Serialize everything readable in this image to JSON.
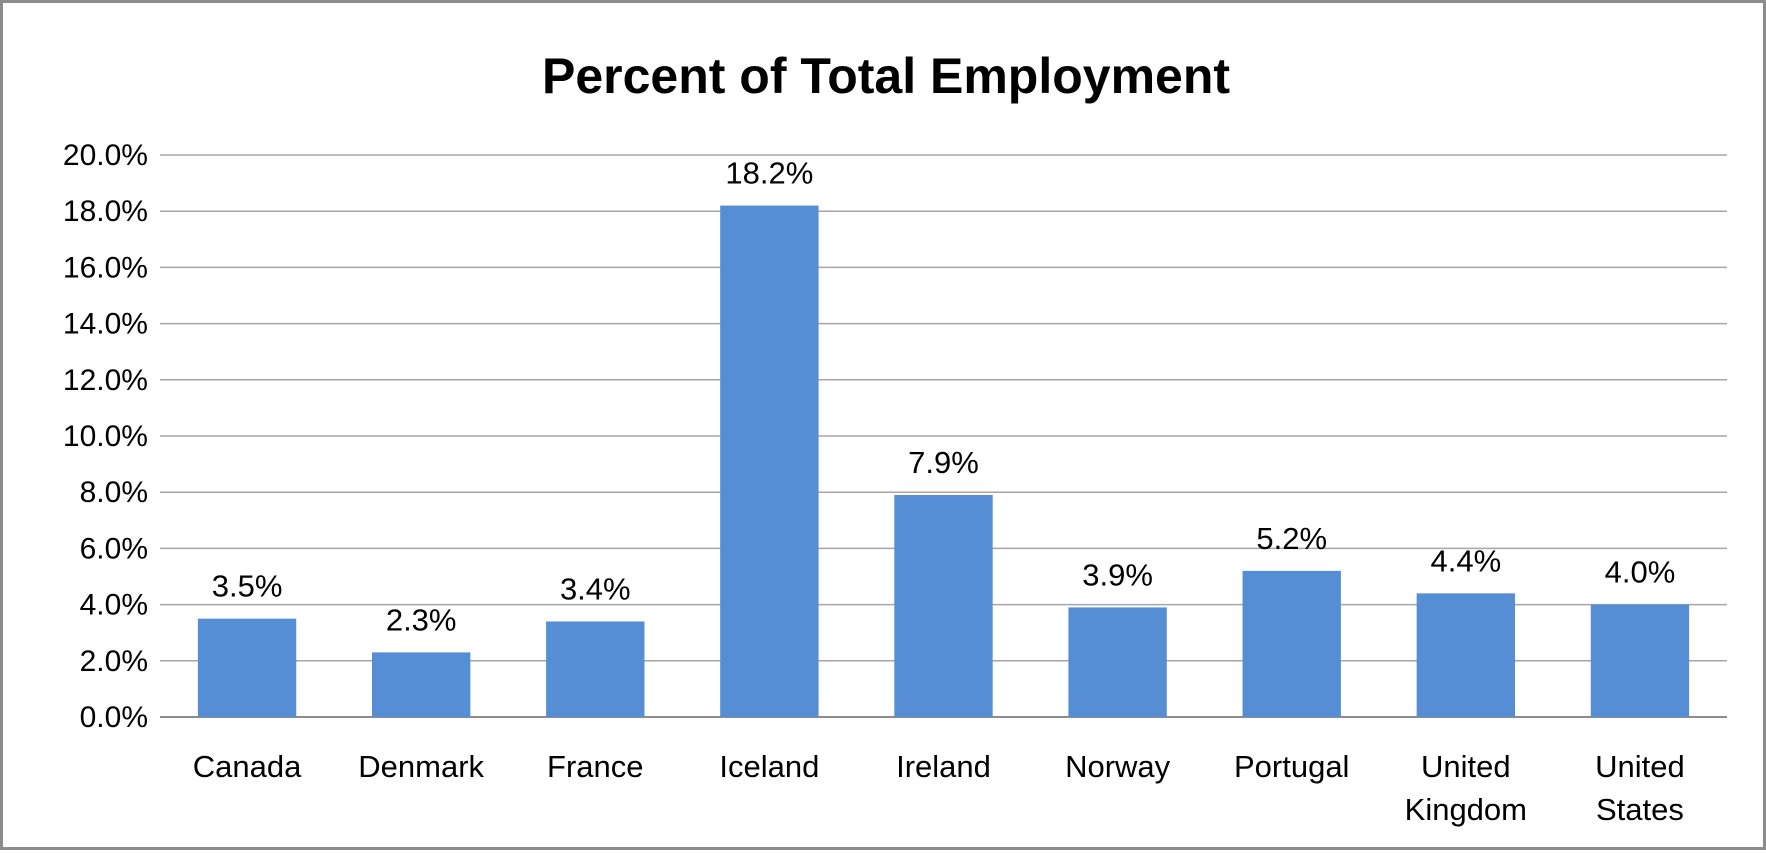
{
  "chart_data": {
    "type": "bar",
    "title": "Percent of Total Employment",
    "xlabel": "",
    "ylabel": "",
    "categories": [
      "Canada",
      "Denmark",
      "France",
      "Iceland",
      "Ireland",
      "Norway",
      "Portugal",
      "United Kingdom",
      "United States"
    ],
    "category_lines": [
      [
        "Canada"
      ],
      [
        "Denmark"
      ],
      [
        "France"
      ],
      [
        "Iceland"
      ],
      [
        "Ireland"
      ],
      [
        "Norway"
      ],
      [
        "Portugal"
      ],
      [
        "United",
        "Kingdom"
      ],
      [
        "United",
        "States"
      ]
    ],
    "values": [
      3.5,
      2.3,
      3.4,
      18.2,
      7.9,
      3.9,
      5.2,
      4.4,
      4.0
    ],
    "data_labels": [
      "3.5%",
      "2.3%",
      "3.4%",
      "18.2%",
      "7.9%",
      "3.9%",
      "5.2%",
      "4.4%",
      "4.0%"
    ],
    "ylim": [
      0,
      20
    ],
    "yticks": [
      0,
      2,
      4,
      6,
      8,
      10,
      12,
      14,
      16,
      18,
      20
    ],
    "ytick_labels": [
      "0.0%",
      "2.0%",
      "4.0%",
      "6.0%",
      "8.0%",
      "10.0%",
      "12.0%",
      "14.0%",
      "16.0%",
      "18.0%",
      "20.0%"
    ],
    "grid": true,
    "legend": "none",
    "bar_color": "#558ed5"
  }
}
